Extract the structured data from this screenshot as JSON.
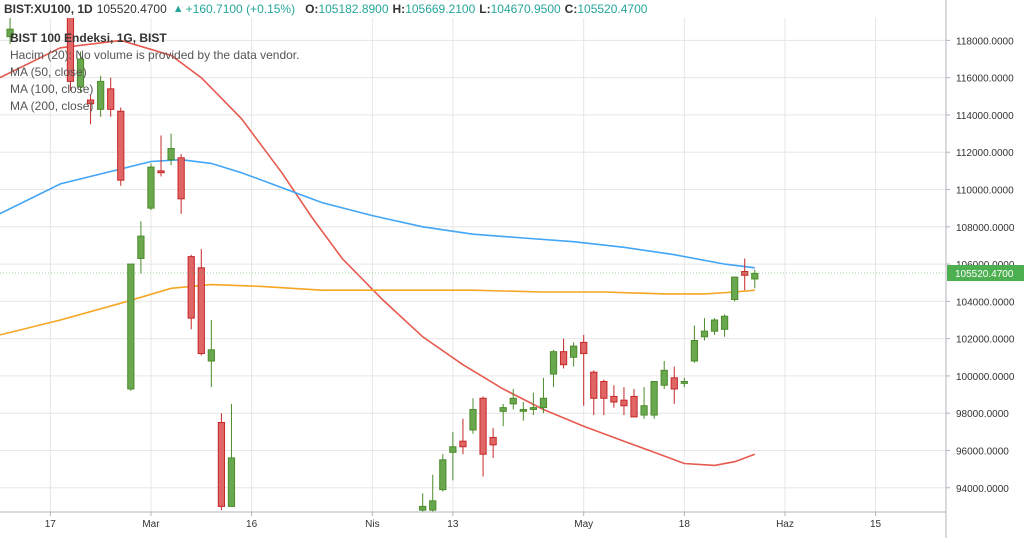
{
  "header": {
    "symbol": "BIST:XU100, 1D",
    "last": "105520.4700",
    "change": "+160.7100 (+0.15%)",
    "open_label": "O:",
    "open": "105182.8900",
    "high_label": "H:",
    "high": "105669.2100",
    "low_label": "L:",
    "low": "104670.9500",
    "close_label": "C:",
    "close": "105520.4700"
  },
  "legend": {
    "title": "BIST 100 Endeksi, 1G, BIST",
    "volume": "Hacim (20): No volume is provided by the data vendor.",
    "ma50": "MA (50, close)",
    "ma100": "MA (100, close)",
    "ma200": "MA (200, close)"
  },
  "colors": {
    "up": "#4c8c2b",
    "up_fill": "#6aa84f",
    "down": "#c62828",
    "down_fill": "#e06666",
    "ma50": "#e65a4f",
    "ma100": "#42a5f5",
    "ma200": "#f5a623",
    "price_tag": "#4caf50",
    "grid": "#e6e6e6",
    "axis": "#b2b5be"
  },
  "chart_data": {
    "type": "candlestick",
    "title": "BIST 100 Endeksi, 1G, BIST",
    "y_ticks": [
      "94000.0000",
      "96000.0000",
      "98000.0000",
      "100000.0000",
      "102000.0000",
      "104000.0000",
      "106000.0000",
      "108000.0000",
      "110000.0000",
      "112000.0000",
      "114000.0000",
      "116000.0000",
      "118000.0000"
    ],
    "y_tick_values": [
      94000,
      96000,
      98000,
      100000,
      102000,
      104000,
      106000,
      108000,
      110000,
      112000,
      114000,
      116000,
      118000
    ],
    "ylim": [
      92700,
      119200
    ],
    "x_tick_labels": [
      {
        "label": "17",
        "day": 3
      },
      {
        "label": "Mar",
        "day": 13
      },
      {
        "label": "16",
        "day": 23
      },
      {
        "label": "Nis",
        "day": 35
      },
      {
        "label": "13",
        "day": 43
      },
      {
        "label": "May",
        "day": 56
      },
      {
        "label": "18",
        "day": 66
      },
      {
        "label": "Haz",
        "day": 76
      },
      {
        "label": "15",
        "day": 85
      }
    ],
    "xlim": [
      -2,
      92
    ],
    "last_price_label": "105520.4700",
    "last_price": 105520.47,
    "candles": [
      {
        "d": -1,
        "o": 118200,
        "h": 119500,
        "l": 117800,
        "c": 118600
      },
      {
        "d": 5,
        "o": 119300,
        "h": 119900,
        "l": 115300,
        "c": 115800
      },
      {
        "d": 6,
        "o": 115500,
        "h": 117400,
        "l": 115200,
        "c": 117000
      },
      {
        "d": 7,
        "o": 114800,
        "h": 115100,
        "l": 113500,
        "c": 114600
      },
      {
        "d": 8,
        "o": 114300,
        "h": 116100,
        "l": 113900,
        "c": 115800
      },
      {
        "d": 9,
        "o": 115400,
        "h": 116000,
        "l": 113900,
        "c": 114300
      },
      {
        "d": 10,
        "o": 114200,
        "h": 114400,
        "l": 110200,
        "c": 110500
      },
      {
        "d": 11,
        "o": 99300,
        "h": 106000,
        "l": 99200,
        "c": 106000
      },
      {
        "d": 12,
        "o": 106300,
        "h": 108300,
        "l": 105500,
        "c": 107500
      },
      {
        "d": 13,
        "o": 109000,
        "h": 111400,
        "l": 108900,
        "c": 111200
      },
      {
        "d": 14,
        "o": 111000,
        "h": 112900,
        "l": 110700,
        "c": 110900
      },
      {
        "d": 15,
        "o": 111600,
        "h": 113000,
        "l": 111300,
        "c": 112200
      },
      {
        "d": 16,
        "o": 111700,
        "h": 111900,
        "l": 108700,
        "c": 109500
      },
      {
        "d": 17,
        "o": 106400,
        "h": 106500,
        "l": 102500,
        "c": 103100
      },
      {
        "d": 18,
        "o": 105800,
        "h": 106800,
        "l": 101100,
        "c": 101200
      },
      {
        "d": 19,
        "o": 100800,
        "h": 103000,
        "l": 99400,
        "c": 101400
      },
      {
        "d": 20,
        "o": 97500,
        "h": 98000,
        "l": 92800,
        "c": 93000
      },
      {
        "d": 21,
        "o": 93000,
        "h": 98500,
        "l": 93000,
        "c": 95600
      },
      {
        "d": 40,
        "o": 92800,
        "h": 93700,
        "l": 92700,
        "c": 93000
      },
      {
        "d": 41,
        "o": 92800,
        "h": 94700,
        "l": 92700,
        "c": 93300
      },
      {
        "d": 42,
        "o": 93900,
        "h": 95800,
        "l": 93800,
        "c": 95500
      },
      {
        "d": 43,
        "o": 95900,
        "h": 97000,
        "l": 94400,
        "c": 96200
      },
      {
        "d": 44,
        "o": 96500,
        "h": 97700,
        "l": 95800,
        "c": 96200
      },
      {
        "d": 45,
        "o": 97100,
        "h": 98800,
        "l": 96900,
        "c": 98200
      },
      {
        "d": 46,
        "o": 98800,
        "h": 98900,
        "l": 94600,
        "c": 95800
      },
      {
        "d": 47,
        "o": 96700,
        "h": 97200,
        "l": 95600,
        "c": 96300
      },
      {
        "d": 48,
        "o": 98100,
        "h": 98500,
        "l": 97300,
        "c": 98300
      },
      {
        "d": 49,
        "o": 98500,
        "h": 99300,
        "l": 98200,
        "c": 98800
      },
      {
        "d": 50,
        "o": 98100,
        "h": 98600,
        "l": 97600,
        "c": 98200
      },
      {
        "d": 51,
        "o": 98200,
        "h": 99100,
        "l": 97900,
        "c": 98300
      },
      {
        "d": 52,
        "o": 98300,
        "h": 99900,
        "l": 98000,
        "c": 98800
      },
      {
        "d": 53,
        "o": 100100,
        "h": 101400,
        "l": 99400,
        "c": 101300
      },
      {
        "d": 54,
        "o": 101300,
        "h": 102000,
        "l": 100400,
        "c": 100600
      },
      {
        "d": 55,
        "o": 101000,
        "h": 101800,
        "l": 100500,
        "c": 101600
      },
      {
        "d": 56,
        "o": 101800,
        "h": 102200,
        "l": 98400,
        "c": 101200
      },
      {
        "d": 57,
        "o": 100200,
        "h": 100300,
        "l": 97900,
        "c": 98800
      },
      {
        "d": 58,
        "o": 99700,
        "h": 99800,
        "l": 97900,
        "c": 98800
      },
      {
        "d": 59,
        "o": 98900,
        "h": 99500,
        "l": 98300,
        "c": 98600
      },
      {
        "d": 60,
        "o": 98700,
        "h": 99400,
        "l": 97900,
        "c": 98400
      },
      {
        "d": 61,
        "o": 98900,
        "h": 99300,
        "l": 97800,
        "c": 97800
      },
      {
        "d": 62,
        "o": 97900,
        "h": 99400,
        "l": 97700,
        "c": 98400
      },
      {
        "d": 63,
        "o": 97900,
        "h": 99600,
        "l": 97700,
        "c": 99700
      },
      {
        "d": 64,
        "o": 99500,
        "h": 100800,
        "l": 99300,
        "c": 100300
      },
      {
        "d": 65,
        "o": 99900,
        "h": 100500,
        "l": 98500,
        "c": 99300
      },
      {
        "d": 66,
        "o": 99600,
        "h": 99900,
        "l": 99400,
        "c": 99700
      },
      {
        "d": 67,
        "o": 100800,
        "h": 102700,
        "l": 100700,
        "c": 101900
      },
      {
        "d": 68,
        "o": 102100,
        "h": 103100,
        "l": 101900,
        "c": 102400
      },
      {
        "d": 69,
        "o": 102400,
        "h": 103100,
        "l": 102200,
        "c": 103000
      },
      {
        "d": 70,
        "o": 102500,
        "h": 103300,
        "l": 102100,
        "c": 103200
      },
      {
        "d": 71,
        "o": 104100,
        "h": 105300,
        "l": 104000,
        "c": 105300
      },
      {
        "d": 72,
        "o": 105600,
        "h": 106300,
        "l": 104600,
        "c": 105400
      },
      {
        "d": 73,
        "o": 105200,
        "h": 105700,
        "l": 104700,
        "c": 105500
      }
    ],
    "series": [
      {
        "name": "MA (50, close)",
        "color": "#e65a4f",
        "points": [
          [
            -2,
            116000
          ],
          [
            4,
            117600
          ],
          [
            10,
            118000
          ],
          [
            15,
            117200
          ],
          [
            18,
            116000
          ],
          [
            22,
            113800
          ],
          [
            26,
            110900
          ],
          [
            29,
            108500
          ],
          [
            32,
            106300
          ],
          [
            36,
            104100
          ],
          [
            40,
            102100
          ],
          [
            44,
            100600
          ],
          [
            48,
            99300
          ],
          [
            52,
            98200
          ],
          [
            56,
            97300
          ],
          [
            60,
            96500
          ],
          [
            63,
            95900
          ],
          [
            66,
            95300
          ],
          [
            69,
            95200
          ],
          [
            71,
            95400
          ],
          [
            73,
            95800
          ]
        ]
      },
      {
        "name": "MA (100, close)",
        "color": "#42a5f5",
        "points": [
          [
            -2,
            108700
          ],
          [
            4,
            110300
          ],
          [
            10,
            111100
          ],
          [
            13,
            111500
          ],
          [
            16,
            111600
          ],
          [
            19,
            111400
          ],
          [
            22,
            110900
          ],
          [
            26,
            110100
          ],
          [
            30,
            109300
          ],
          [
            35,
            108600
          ],
          [
            40,
            108000
          ],
          [
            45,
            107600
          ],
          [
            50,
            107400
          ],
          [
            55,
            107200
          ],
          [
            60,
            106900
          ],
          [
            65,
            106500
          ],
          [
            70,
            106000
          ],
          [
            73,
            105800
          ]
        ]
      },
      {
        "name": "MA (200, close)",
        "color": "#f5a623",
        "points": [
          [
            -2,
            102200
          ],
          [
            4,
            103000
          ],
          [
            10,
            103900
          ],
          [
            15,
            104700
          ],
          [
            19,
            104900
          ],
          [
            24,
            104800
          ],
          [
            30,
            104600
          ],
          [
            38,
            104600
          ],
          [
            45,
            104600
          ],
          [
            52,
            104500
          ],
          [
            58,
            104500
          ],
          [
            64,
            104400
          ],
          [
            68,
            104400
          ],
          [
            71,
            104500
          ],
          [
            73,
            104600
          ]
        ]
      }
    ]
  }
}
